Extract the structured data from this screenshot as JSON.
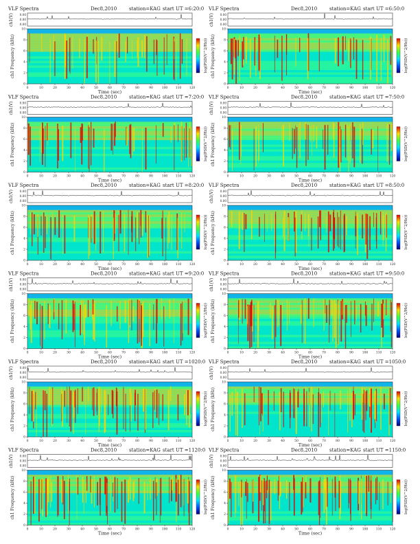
{
  "page": {
    "colors": {
      "spectrogram_low": "#1e90ff",
      "spectrogram_mid": "#00e5cc",
      "spectrogram_high": "#ffd400",
      "spectrogram_peak": "#e00000",
      "trace": "#222222"
    }
  },
  "shared": {
    "title_left": "VLF Spectra",
    "date": "Dec8,2010",
    "station": "station=KAG",
    "ch1_axis_label": "ch1(V)",
    "ch1_ticks": [
      "0.00",
      "0.00",
      "0.00"
    ],
    "spec_ylabel": "ch1 Frequency (kHz)",
    "xlabel": "Time (sec)",
    "x_ticks": [
      "0",
      "10",
      "20",
      "30",
      "40",
      "50",
      "60",
      "70",
      "80",
      "90",
      "100",
      "110",
      "120"
    ],
    "y_ticks": [
      "0",
      "2",
      "4",
      "6",
      "8",
      "10"
    ],
    "colorbar_label": "log(PSD(V^2/Hz))",
    "colorbar_ticks": [
      "-",
      "-"
    ]
  },
  "panels": [
    {
      "start": "start UT =6:20:0"
    },
    {
      "start": "start UT =6:50:0"
    },
    {
      "start": "start UT =7:20:0"
    },
    {
      "start": "start UT =7:50:0"
    },
    {
      "start": "start UT =8:20:0"
    },
    {
      "start": "start UT =8:50:0"
    },
    {
      "start": "start UT =9:20:0"
    },
    {
      "start": "start UT =9:50:0"
    },
    {
      "start": "start UT =1020:0"
    },
    {
      "start": "start UT =1050:0"
    },
    {
      "start": "start UT =1120:0"
    },
    {
      "start": "start UT =1150:0"
    }
  ],
  "chart_data": {
    "type": "heatmap",
    "title": "VLF Spectra",
    "xlabel": "Time (sec)",
    "ylabel": "Frequency (kHz)",
    "xlim": [
      0,
      120
    ],
    "ylim": [
      0,
      10
    ],
    "colorbar": "log(PSD(V^2/Hz))",
    "panel_starts": [
      "6:20:0",
      "6:50:0",
      "7:20:0",
      "7:50:0",
      "8:20:0",
      "8:50:0",
      "9:20:0",
      "9:50:0",
      "1020:0",
      "1050:0",
      "1120:0",
      "1150:0"
    ],
    "note": "Twelve VLF spectrogram panels (station KAG, Dec 8 2010), each spanning 0–120 s and 0–10 kHz"
  }
}
